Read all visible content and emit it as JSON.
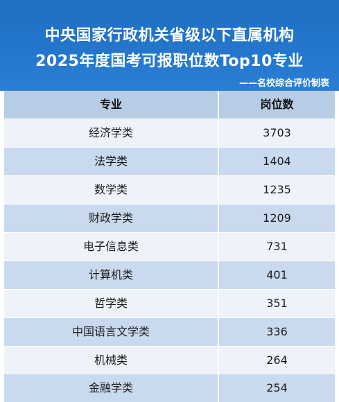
{
  "header": {
    "title_line1": "中央国家行政机关省级以下直属机构",
    "title_line2": "2025年度国考可报职位数Top10专业",
    "source": "——名校综合评价制表"
  },
  "table": {
    "columns": [
      "专业",
      "岗位数"
    ],
    "rows": [
      {
        "major": "经济学类",
        "count": "3703"
      },
      {
        "major": "法学类",
        "count": "1404"
      },
      {
        "major": "数学类",
        "count": "1235"
      },
      {
        "major": "财政学类",
        "count": "1209"
      },
      {
        "major": "电子信息类",
        "count": "731"
      },
      {
        "major": "计算机类",
        "count": "401"
      },
      {
        "major": "哲学类",
        "count": "351"
      },
      {
        "major": "中国语言文学类",
        "count": "336"
      },
      {
        "major": "机械类",
        "count": "264"
      },
      {
        "major": "金融学类",
        "count": "254"
      }
    ]
  }
}
